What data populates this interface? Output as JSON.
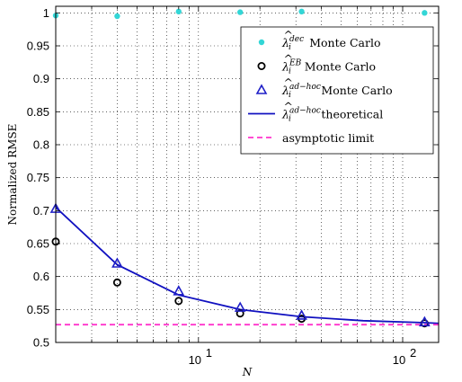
{
  "chart_data": {
    "type": "scatter",
    "xscale": "log",
    "xlim": [
      2,
      150
    ],
    "ylim": [
      0.5,
      1.01
    ],
    "grid": true,
    "legend_position": "top-right",
    "xlabel": "N",
    "ylabel": "Normalized RMSE",
    "x_tick_labels": [
      "10",
      "10"
    ],
    "x_tick_exponents": [
      "1",
      "2"
    ],
    "y_ticks": [
      "0.5",
      "0.55",
      "0.6",
      "0.65",
      "0.7",
      "0.75",
      "0.8",
      "0.85",
      "0.9",
      "0.95",
      "1"
    ],
    "series": [
      {
        "key": "dec",
        "name": "Monte Carlo",
        "superscript": "dec",
        "marker": "dot",
        "color": "#33d6d6",
        "x": [
          2,
          4,
          8,
          16,
          32,
          128
        ],
        "y": [
          0.996,
          0.995,
          1.002,
          1.001,
          1.002,
          1.0
        ]
      },
      {
        "key": "eb",
        "name": "Monte Carlo",
        "superscript": "EB",
        "marker": "circle",
        "color": "#000000",
        "x": [
          2,
          4,
          8,
          16,
          32,
          128
        ],
        "y": [
          0.653,
          0.591,
          0.563,
          0.544,
          0.536,
          0.529
        ]
      },
      {
        "key": "adhoc_mc",
        "name": "Monte Carlo",
        "superscript": "ad−hoc",
        "marker": "triangle",
        "color": "#1f1fc7",
        "x": [
          2,
          4,
          8,
          16,
          32,
          128
        ],
        "y": [
          0.703,
          0.62,
          0.578,
          0.553,
          0.541,
          0.531
        ]
      },
      {
        "key": "adhoc_theory",
        "name": "theoretical",
        "superscript": "ad−hoc",
        "marker": "line",
        "color": "#1010c0",
        "x": [
          2,
          4,
          8,
          16,
          32,
          64,
          128,
          150
        ],
        "y": [
          0.705,
          0.618,
          0.572,
          0.55,
          0.539,
          0.533,
          0.53,
          0.529
        ]
      },
      {
        "key": "asymptotic",
        "name": "asymptotic limit",
        "marker": "dashed",
        "color": "#ff33cc",
        "x": [
          2,
          150
        ],
        "y": [
          0.527,
          0.527
        ]
      }
    ]
  }
}
